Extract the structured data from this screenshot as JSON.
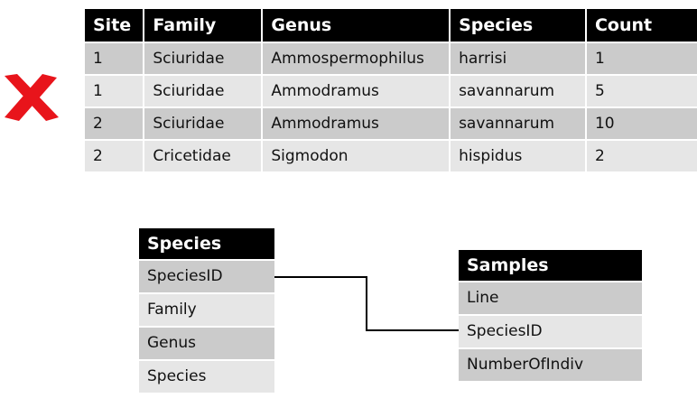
{
  "table": {
    "headers": [
      "Site",
      "Family",
      "Genus",
      "Species",
      "Count"
    ],
    "rows": [
      [
        "1",
        "Sciuridae",
        "Ammospermophilus",
        "harrisi",
        "1"
      ],
      [
        "1",
        "Sciuridae",
        "Ammodramus",
        "savannarum",
        "5"
      ],
      [
        "2",
        "Sciuridae",
        "Ammodramus",
        "savannarum",
        "10"
      ],
      [
        "2",
        "Cricetidae",
        "Sigmodon",
        "hispidus",
        "2"
      ]
    ]
  },
  "mark": {
    "icon": "x-icon",
    "color": "#e8141b"
  },
  "species_table": {
    "title": "Species",
    "fields": [
      "SpeciesID",
      "Family",
      "Genus",
      "Species"
    ]
  },
  "samples_table": {
    "title": "Samples",
    "fields": [
      "Line",
      "SpeciesID",
      "NumberOfIndiv"
    ]
  }
}
